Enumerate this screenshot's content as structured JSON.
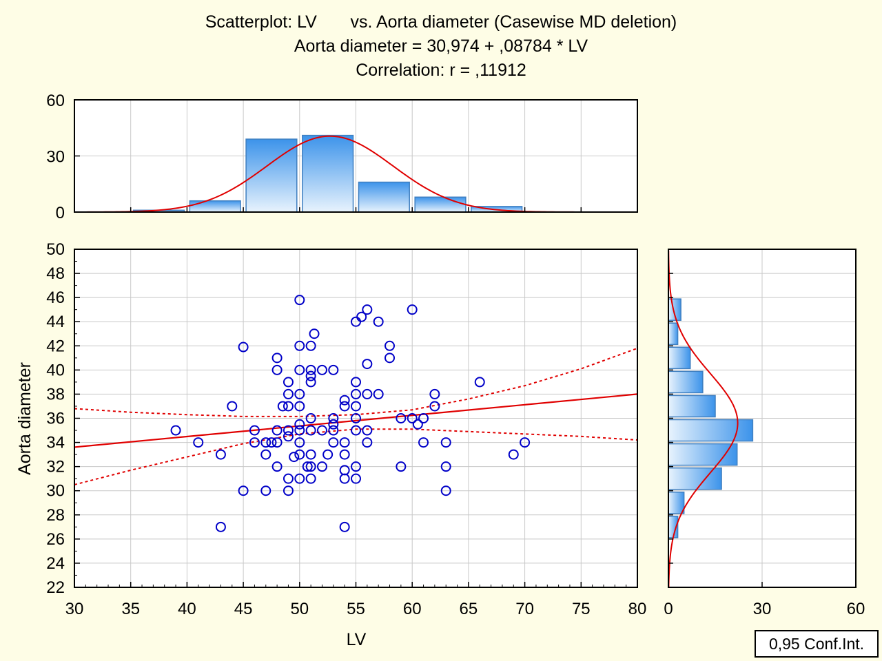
{
  "title_lines": [
    "Scatterplot: LV       vs. Aorta diameter (Casewise MD deletion)",
    "Aorta diameter = 30,974 + ,08784 * LV",
    "Correlation: r = ,11912"
  ],
  "legend_label": "0,95 Conf.Int.",
  "colors": {
    "background": "#fefde6",
    "plot_bg": "#ffffff",
    "points": "#0000c8",
    "fit_line": "#e00000",
    "bar_fill_dark": "#3c93ea",
    "bar_fill_light": "#e8f3fd",
    "bar_stroke": "#3f7fc0",
    "grid": "#c8c8c8"
  },
  "chart_data": [
    {
      "type": "scatter",
      "xlabel": "LV",
      "ylabel": "Aorta diameter",
      "xlim": [
        30,
        80
      ],
      "ylim": [
        22,
        50
      ],
      "x_ticks": [
        "30",
        "35",
        "40",
        "45",
        "50",
        "55",
        "60",
        "65",
        "70",
        "75",
        "80"
      ],
      "y_ticks": [
        "22",
        "24",
        "26",
        "28",
        "30",
        "32",
        "34",
        "36",
        "38",
        "40",
        "42",
        "44",
        "46",
        "48",
        "50"
      ],
      "grid": true,
      "regression": {
        "intercept": 30.974,
        "slope": 0.08784
      },
      "confidence_band": {
        "x": [
          30,
          35,
          40,
          45,
          50,
          55,
          60,
          65,
          70,
          75,
          80
        ],
        "upper": [
          36.8,
          36.5,
          36.3,
          36.15,
          36.15,
          36.3,
          36.7,
          37.6,
          38.7,
          40.1,
          41.8
        ],
        "lower": [
          30.5,
          31.7,
          32.8,
          33.9,
          34.7,
          35.1,
          35.1,
          34.9,
          34.7,
          34.5,
          34.2
        ]
      },
      "points": [
        [
          39,
          35
        ],
        [
          41,
          34
        ],
        [
          43,
          33
        ],
        [
          43,
          27
        ],
        [
          44,
          37
        ],
        [
          45,
          30
        ],
        [
          45,
          41.9
        ],
        [
          46,
          35
        ],
        [
          46,
          34
        ],
        [
          47,
          34
        ],
        [
          47,
          33
        ],
        [
          47,
          30
        ],
        [
          47.5,
          34
        ],
        [
          48,
          41
        ],
        [
          48,
          40
        ],
        [
          48,
          35
        ],
        [
          48,
          34
        ],
        [
          48,
          32
        ],
        [
          48.5,
          37
        ],
        [
          49,
          39
        ],
        [
          49,
          38
        ],
        [
          49,
          37
        ],
        [
          49,
          35
        ],
        [
          49,
          34.5
        ],
        [
          49,
          31
        ],
        [
          49,
          30
        ],
        [
          49.5,
          32.8
        ],
        [
          50,
          45.8
        ],
        [
          50,
          42
        ],
        [
          50,
          40
        ],
        [
          50,
          38
        ],
        [
          50,
          37
        ],
        [
          50,
          35.5
        ],
        [
          50,
          35
        ],
        [
          50,
          34
        ],
        [
          50,
          33
        ],
        [
          50,
          31
        ],
        [
          50.7,
          32
        ],
        [
          51,
          42
        ],
        [
          51,
          40
        ],
        [
          51,
          39.5
        ],
        [
          51,
          39
        ],
        [
          51,
          36
        ],
        [
          51,
          35
        ],
        [
          51,
          33
        ],
        [
          51,
          32
        ],
        [
          51,
          31
        ],
        [
          51.3,
          43
        ],
        [
          52,
          40
        ],
        [
          52,
          35
        ],
        [
          52,
          32
        ],
        [
          52.5,
          33
        ],
        [
          53,
          40
        ],
        [
          53,
          36
        ],
        [
          53,
          35.5
        ],
        [
          53,
          35
        ],
        [
          53,
          34
        ],
        [
          54,
          37.5
        ],
        [
          54,
          37
        ],
        [
          54,
          34
        ],
        [
          54,
          33
        ],
        [
          54,
          31.7
        ],
        [
          54,
          31
        ],
        [
          54,
          27
        ],
        [
          55,
          44
        ],
        [
          55,
          39
        ],
        [
          55,
          38
        ],
        [
          55,
          37
        ],
        [
          55,
          36
        ],
        [
          55,
          35
        ],
        [
          55,
          32
        ],
        [
          55,
          31
        ],
        [
          55.5,
          44.4
        ],
        [
          56,
          45
        ],
        [
          56,
          40.5
        ],
        [
          56,
          38
        ],
        [
          56,
          35
        ],
        [
          56,
          34
        ],
        [
          57,
          44
        ],
        [
          57,
          38
        ],
        [
          58,
          42
        ],
        [
          58,
          41
        ],
        [
          59,
          36
        ],
        [
          59,
          32
        ],
        [
          60,
          45
        ],
        [
          60,
          36
        ],
        [
          60.5,
          35.5
        ],
        [
          61,
          36
        ],
        [
          61,
          34
        ],
        [
          62,
          38
        ],
        [
          62,
          37
        ],
        [
          63,
          34
        ],
        [
          63,
          32
        ],
        [
          63,
          30
        ],
        [
          66,
          39
        ],
        [
          69,
          33
        ],
        [
          70,
          34
        ]
      ]
    },
    {
      "type": "bar",
      "orientation": "vertical",
      "note_axis": "LV histogram",
      "bin_edges": [
        30,
        35,
        40,
        45,
        50,
        55,
        60,
        65,
        70,
        75,
        80
      ],
      "values": [
        0,
        1,
        6,
        39,
        41,
        16,
        8,
        3,
        0,
        0
      ],
      "ylim": [
        0,
        60
      ],
      "y_ticks": [
        "0",
        "30",
        "60"
      ],
      "normal_fit": {
        "mean": 52.7,
        "sd": 5.6,
        "n": 114,
        "bin_width": 5
      }
    },
    {
      "type": "bar",
      "orientation": "horizontal",
      "note_axis": "Aorta diameter histogram",
      "bin_edges": [
        26,
        28,
        30,
        32,
        34,
        36,
        38,
        40,
        42,
        44,
        46
      ],
      "values": [
        3,
        5,
        17,
        22,
        27,
        15,
        11,
        7,
        3,
        4
      ],
      "xlim": [
        0,
        60
      ],
      "x_ticks": [
        "0",
        "30",
        "60"
      ],
      "normal_fit": {
        "mean": 35.6,
        "sd": 4.1,
        "n": 114,
        "bin_width": 2
      }
    }
  ]
}
